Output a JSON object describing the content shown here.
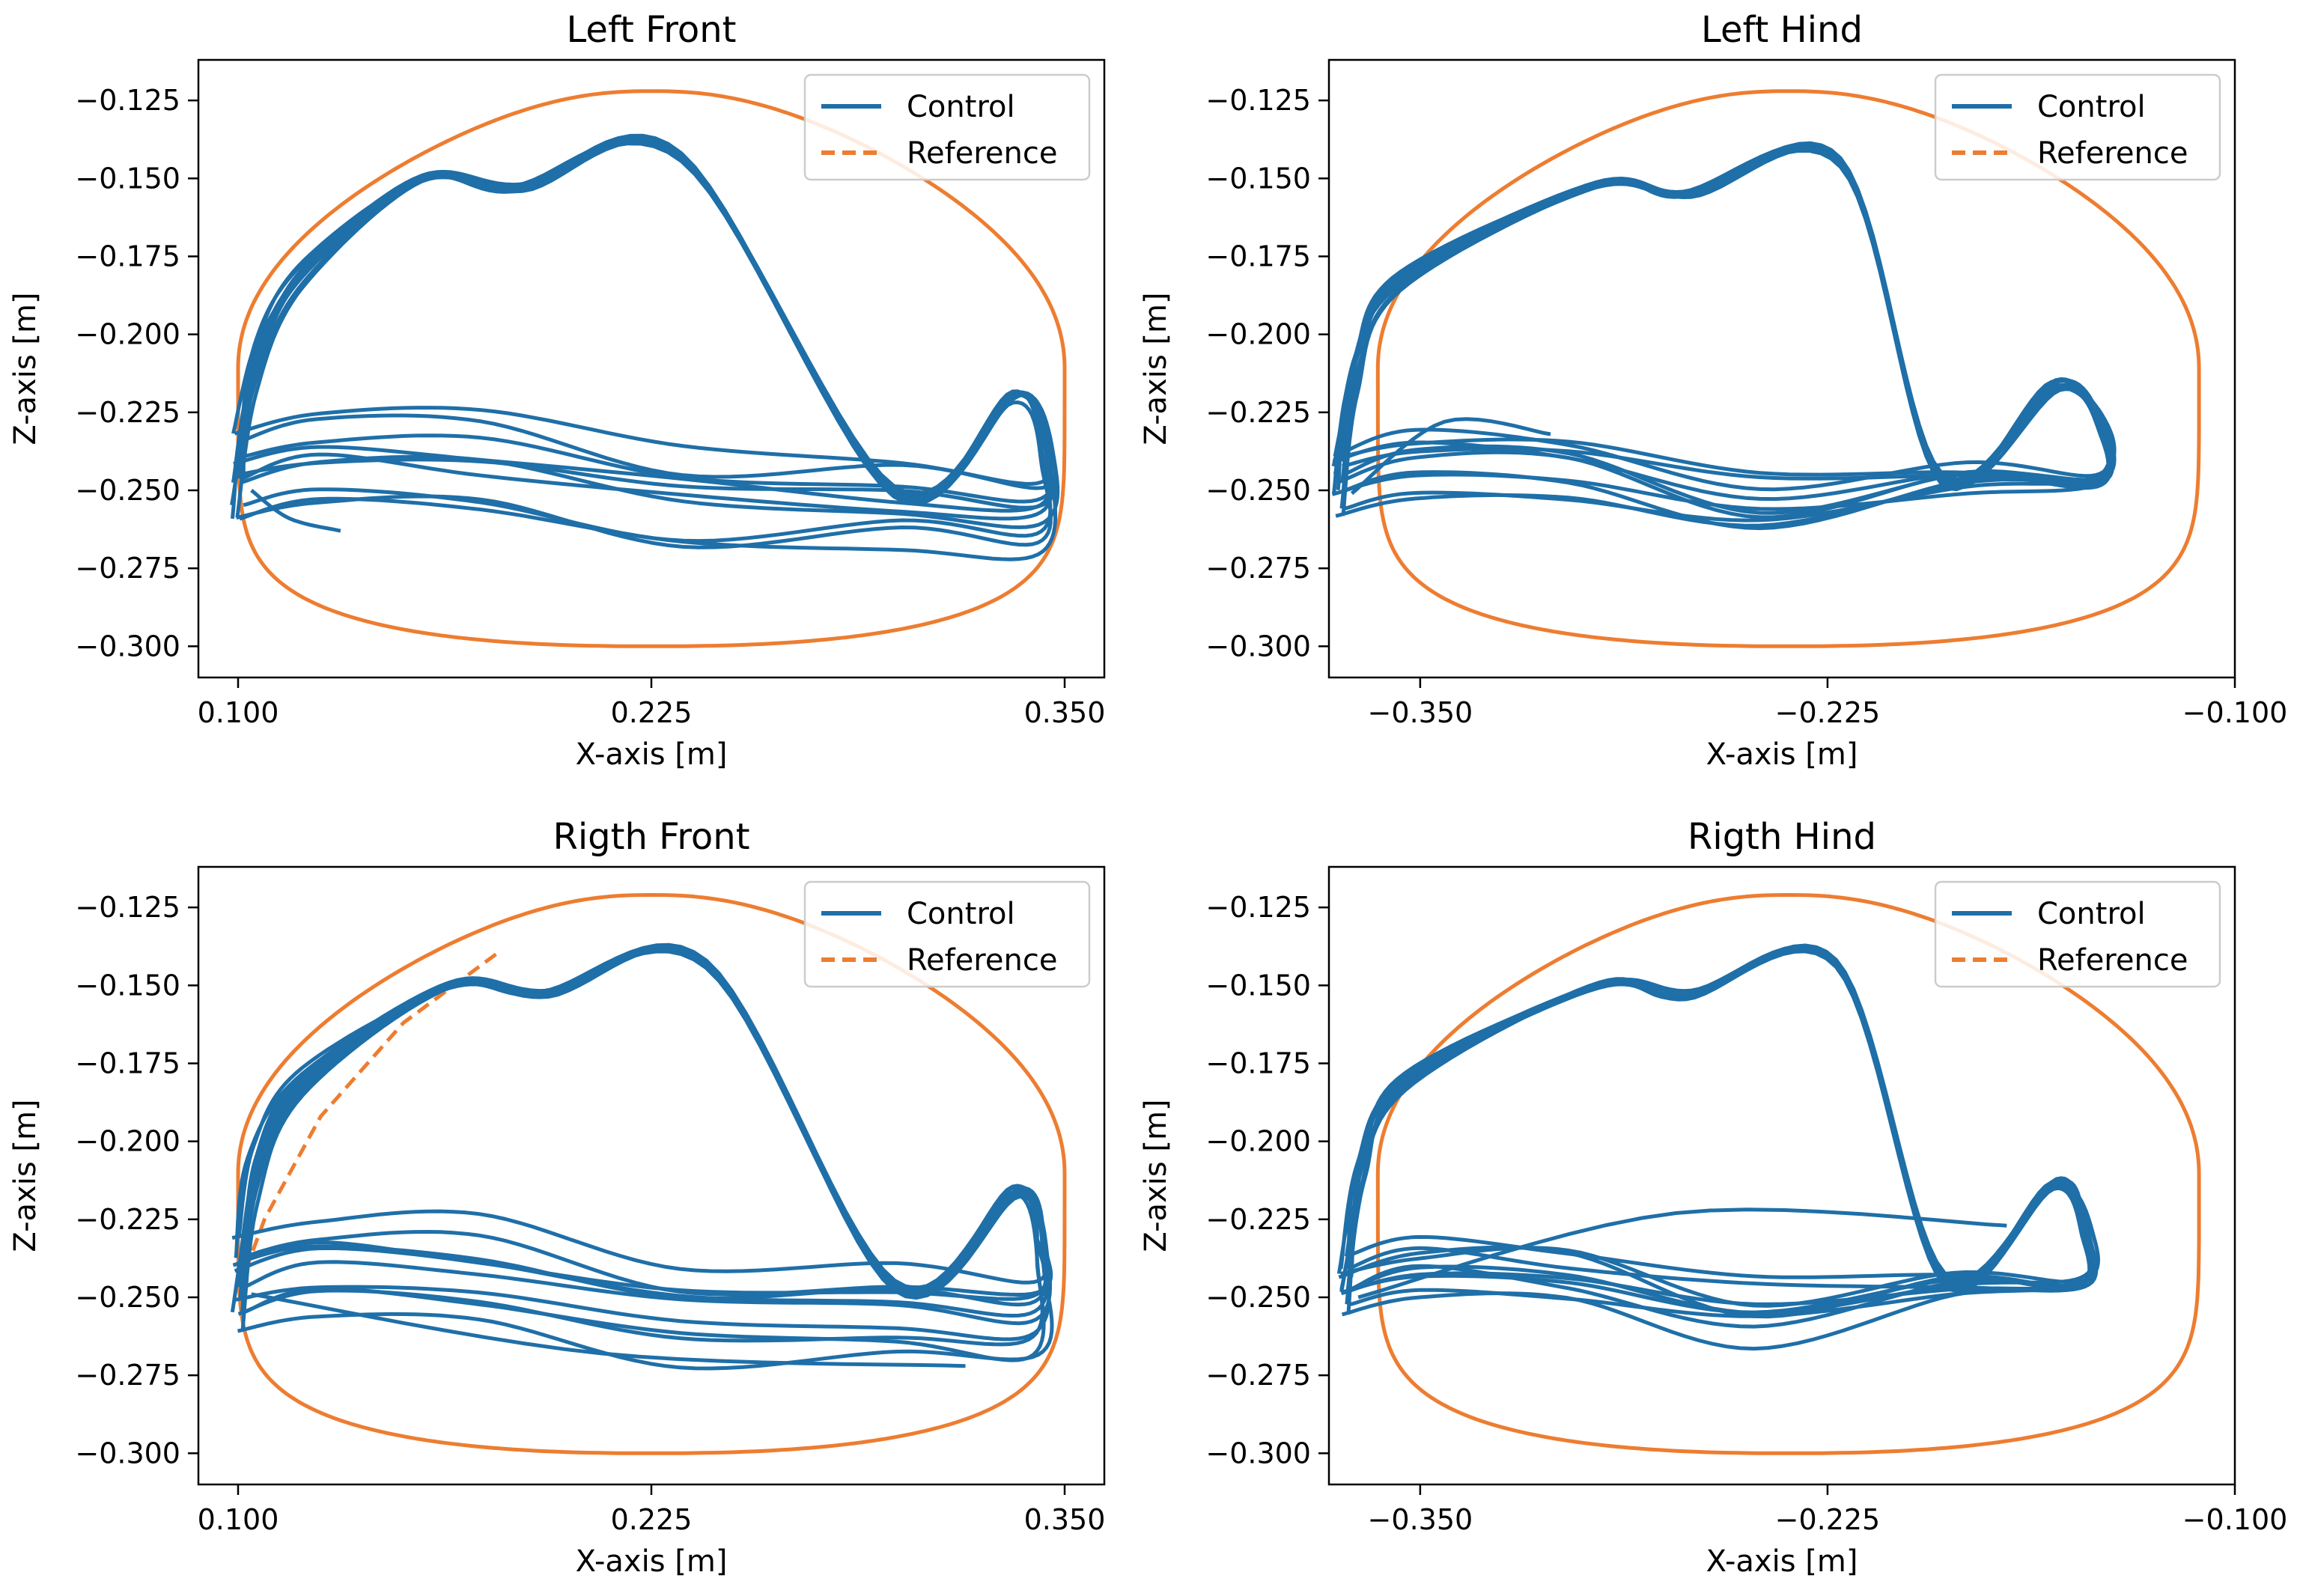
{
  "chart_data": [
    {
      "type": "line",
      "title": "Left Front",
      "xlabel": "X-axis [m]",
      "ylabel": "Z-axis [m]",
      "xlim": [
        0.088,
        0.362
      ],
      "ylim": [
        -0.31,
        -0.112
      ],
      "xticks": [
        0.1,
        0.225,
        0.35
      ],
      "xtick_labels": [
        "0.100",
        "0.225",
        "0.350"
      ],
      "yticks": [
        -0.125,
        -0.15,
        -0.175,
        -0.2,
        -0.225,
        -0.25,
        -0.275,
        -0.3
      ],
      "ytick_labels": [
        "−0.125",
        "−0.150",
        "−0.175",
        "−0.200",
        "−0.225",
        "−0.250",
        "−0.275",
        "−0.300"
      ],
      "legend": {
        "position": "top-right",
        "entries": [
          {
            "label": "Control",
            "color": "#1f77b4",
            "style": "solid"
          },
          {
            "label": "Reference",
            "color": "#ff7f0e",
            "style": "dashed"
          }
        ]
      },
      "reference": {
        "center_x": 0.225,
        "half_width": 0.125,
        "top": -0.122,
        "bottom": -0.3,
        "flatness": 3.0,
        "dashed_segment": null
      },
      "control": {
        "n_cycles": 10,
        "lift_x": 0.1,
        "apex_x": 0.185,
        "apex_z": -0.153,
        "down_x": 0.335,
        "down_z": -0.22,
        "front_x": 0.345,
        "front_bottom_z": -0.27,
        "back_z": -0.246,
        "spread": 0.03,
        "tail_end": [
          0.131,
          -0.263
        ]
      }
    },
    {
      "type": "line",
      "title": "Left Hind",
      "xlabel": "X-axis [m]",
      "ylabel": "Z-axis [m]",
      "xlim": [
        -0.378,
        -0.1
      ],
      "ylim": [
        -0.31,
        -0.112
      ],
      "xticks": [
        -0.35,
        -0.225,
        -0.1
      ],
      "xtick_labels": [
        "−0.350",
        "−0.225",
        "−0.100"
      ],
      "yticks": [
        -0.125,
        -0.15,
        -0.175,
        -0.2,
        -0.225,
        -0.25,
        -0.275,
        -0.3
      ],
      "ytick_labels": [
        "−0.125",
        "−0.150",
        "−0.175",
        "−0.200",
        "−0.225",
        "−0.250",
        "−0.275",
        "−0.300"
      ],
      "legend": {
        "position": "top-right",
        "entries": [
          {
            "label": "Control",
            "color": "#1f77b4",
            "style": "solid"
          },
          {
            "label": "Reference",
            "color": "#ff7f0e",
            "style": "dashed"
          }
        ]
      },
      "reference": {
        "center_x": -0.237,
        "half_width": 0.126,
        "top": -0.122,
        "bottom": -0.3,
        "flatness": 3.0,
        "dashed_segment": null
      },
      "control": {
        "n_cycles": 10,
        "lift_x": -0.375,
        "apex_x": -0.268,
        "apex_z": -0.155,
        "down_x": -0.155,
        "down_z": -0.216,
        "front_x": -0.14,
        "front_bottom_z": -0.247,
        "back_z": -0.247,
        "spread": 0.02,
        "tail_end": [
          -0.31,
          -0.232
        ]
      }
    },
    {
      "type": "line",
      "title": "Rigth Front",
      "xlabel": "X-axis [m]",
      "ylabel": "Z-axis [m]",
      "xlim": [
        0.088,
        0.362
      ],
      "ylim": [
        -0.31,
        -0.112
      ],
      "xticks": [
        0.1,
        0.225,
        0.35
      ],
      "xtick_labels": [
        "0.100",
        "0.225",
        "0.350"
      ],
      "yticks": [
        -0.125,
        -0.15,
        -0.175,
        -0.2,
        -0.225,
        -0.25,
        -0.275,
        -0.3
      ],
      "ytick_labels": [
        "−0.125",
        "−0.150",
        "−0.175",
        "−0.200",
        "−0.225",
        "−0.250",
        "−0.275",
        "−0.300"
      ],
      "legend": {
        "position": "top-right",
        "entries": [
          {
            "label": "Control",
            "color": "#1f77b4",
            "style": "solid"
          },
          {
            "label": "Reference",
            "color": "#ff7f0e",
            "style": "dashed"
          }
        ]
      },
      "reference": {
        "center_x": 0.225,
        "half_width": 0.125,
        "top": -0.121,
        "bottom": -0.3,
        "flatness": 3.0,
        "dashed_segment": [
          [
            0.178,
            -0.14
          ],
          [
            0.15,
            -0.162
          ],
          [
            0.125,
            -0.192
          ],
          [
            0.108,
            -0.225
          ],
          [
            0.101,
            -0.245
          ]
        ]
      },
      "control": {
        "n_cycles": 10,
        "lift_x": 0.1,
        "apex_x": 0.193,
        "apex_z": -0.153,
        "down_x": 0.335,
        "down_z": -0.216,
        "front_x": 0.343,
        "front_bottom_z": -0.27,
        "back_z": -0.245,
        "spread": 0.03,
        "tail_end": [
          0.32,
          -0.272
        ]
      }
    },
    {
      "type": "line",
      "title": "Rigth Hind",
      "xlabel": "X-axis [m]",
      "ylabel": "Z-axis [m]",
      "xlim": [
        -0.378,
        -0.1
      ],
      "ylim": [
        -0.31,
        -0.112
      ],
      "xticks": [
        -0.35,
        -0.225,
        -0.1
      ],
      "xtick_labels": [
        "−0.350",
        "−0.225",
        "−0.100"
      ],
      "yticks": [
        -0.125,
        -0.15,
        -0.175,
        -0.2,
        -0.225,
        -0.25,
        -0.275,
        -0.3
      ],
      "ytick_labels": [
        "−0.125",
        "−0.150",
        "−0.175",
        "−0.200",
        "−0.225",
        "−0.250",
        "−0.275",
        "−0.300"
      ],
      "legend": {
        "position": "top-right",
        "entries": [
          {
            "label": "Control",
            "color": "#1f77b4",
            "style": "solid"
          },
          {
            "label": "Reference",
            "color": "#ff7f0e",
            "style": "dashed"
          }
        ]
      },
      "reference": {
        "center_x": -0.237,
        "half_width": 0.126,
        "top": -0.121,
        "bottom": -0.3,
        "flatness": 3.0,
        "dashed_segment": null
      },
      "control": {
        "n_cycles": 10,
        "lift_x": -0.373,
        "apex_x": -0.268,
        "apex_z": -0.153,
        "down_x": -0.155,
        "down_z": -0.214,
        "front_x": -0.145,
        "front_bottom_z": -0.245,
        "back_z": -0.246,
        "spread": 0.02,
        "tail_end": [
          -0.17,
          -0.227
        ]
      }
    }
  ]
}
